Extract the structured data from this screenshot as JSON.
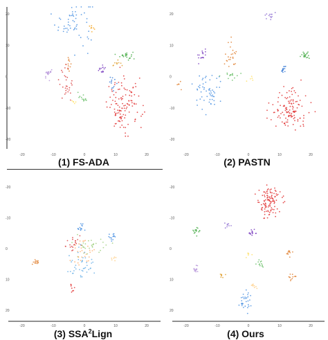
{
  "figure": {
    "panels": [
      {
        "caption_main": "(1) FS-ADA",
        "caption_sup": "",
        "caption_tail": "",
        "chart_data": {
          "type": "scatter",
          "xticks": [
            "-20",
            "-10",
            "0",
            "10",
            "20"
          ],
          "yticks": [
            "20",
            "10",
            "0",
            "-10",
            "-20"
          ],
          "xlim": [
            -24,
            24
          ],
          "ylim": [
            -25,
            25
          ],
          "clusters": [
            {
              "color": "#4a90e2",
              "cx": -3.5,
              "cy": 20,
              "sx": 3.2,
              "sy": 4.2,
              "n": 55
            },
            {
              "color": "#f5a623",
              "cx": 2.5,
              "cy": 17.5,
              "sx": 0.6,
              "sy": 0.6,
              "n": 8
            },
            {
              "color": "#4cae4c",
              "cx": 14.5,
              "cy": 8,
              "sx": 1.1,
              "sy": 0.8,
              "n": 22
            },
            {
              "color": "#e0a030",
              "cx": 11,
              "cy": 5,
              "sx": 0.8,
              "sy": 0.8,
              "n": 10
            },
            {
              "color": "#e08030",
              "cx": -5.5,
              "cy": 5,
              "sx": 0.6,
              "sy": 1.4,
              "n": 12
            },
            {
              "color": "#7b3fbf",
              "cx": 6,
              "cy": 3,
              "sx": 0.7,
              "sy": 0.7,
              "n": 14
            },
            {
              "color": "#b593d9",
              "cx": -12.5,
              "cy": 1.5,
              "sx": 0.8,
              "sy": 0.8,
              "n": 18
            },
            {
              "color": "#d94040",
              "cx": -6.5,
              "cy": -2,
              "sx": 1.2,
              "sy": 3.0,
              "n": 28
            },
            {
              "color": "#3a7bd5",
              "cx": 10,
              "cy": -1.5,
              "sx": 0.6,
              "sy": 1.2,
              "n": 12
            },
            {
              "color": "#e03030",
              "cx": 14,
              "cy": -10,
              "sx": 3.0,
              "sy": 4.6,
              "n": 120
            },
            {
              "color": "#6abf69",
              "cx": -0.5,
              "cy": -7,
              "sx": 0.9,
              "sy": 0.7,
              "n": 12
            },
            {
              "color": "#ffe066",
              "cx": -4,
              "cy": -8,
              "sx": 0.5,
              "sy": 0.5,
              "n": 5
            }
          ]
        }
      },
      {
        "caption_main": "(2) PASTN",
        "caption_sup": "",
        "caption_tail": "",
        "chart_data": {
          "type": "scatter",
          "xticks": [
            "-20",
            "-10",
            "0",
            "10",
            "20"
          ],
          "yticks": [
            "20",
            "10",
            "0",
            "-10",
            "-20"
          ],
          "xlim": [
            -24,
            24
          ],
          "ylim": [
            -25,
            25
          ],
          "clusters": [
            {
              "color": "#8e6fd1",
              "cx": 7,
              "cy": 22,
              "sx": 0.9,
              "sy": 0.9,
              "n": 12
            },
            {
              "color": "#4cae4c",
              "cx": 20,
              "cy": 8,
              "sx": 1.0,
              "sy": 0.7,
              "n": 20
            },
            {
              "color": "#7b3fbf",
              "cx": -16,
              "cy": 8,
              "sx": 0.7,
              "sy": 1.0,
              "n": 16
            },
            {
              "color": "#e08030",
              "cx": -6,
              "cy": 8,
              "sx": 0.9,
              "sy": 3.0,
              "n": 24
            },
            {
              "color": "#3a7bd5",
              "cx": 12,
              "cy": 3,
              "sx": 0.7,
              "sy": 0.7,
              "n": 14
            },
            {
              "color": "#6abf69",
              "cx": -6,
              "cy": 1,
              "sx": 1.2,
              "sy": 0.7,
              "n": 14
            },
            {
              "color": "#ffe066",
              "cx": 1,
              "cy": 0,
              "sx": 0.5,
              "sy": 0.5,
              "n": 5
            },
            {
              "color": "#4a90e2",
              "cx": -14,
              "cy": -5,
              "sx": 2.5,
              "sy": 3.8,
              "n": 55
            },
            {
              "color": "#e08030",
              "cx": -24,
              "cy": -3,
              "sx": 0.4,
              "sy": 0.7,
              "n": 6
            },
            {
              "color": "#e03030",
              "cx": 14,
              "cy": -11,
              "sx": 3.4,
              "sy": 3.8,
              "n": 120
            }
          ]
        }
      },
      {
        "caption_main": "(3) SSA",
        "caption_sup": "2",
        "caption_tail": "Lign",
        "chart_data": {
          "type": "scatter",
          "xticks": [
            "-20",
            "-10",
            "0",
            "10",
            "20"
          ],
          "yticks": [
            "-20",
            "-10",
            "0",
            "10",
            "20"
          ],
          "xlim": [
            -24,
            24
          ],
          "ylim": [
            -25,
            25
          ],
          "clusters": [
            {
              "color": "#4a90e2",
              "cx": -1,
              "cy": 8,
              "sx": 1.0,
              "sy": 1.0,
              "n": 14
            },
            {
              "color": "#4a90e2",
              "cx": 10,
              "cy": 5,
              "sx": 1.0,
              "sy": 1.0,
              "n": 14
            },
            {
              "color": "#d94040",
              "cx": -4,
              "cy": 2,
              "sx": 1.3,
              "sy": 1.2,
              "n": 20
            },
            {
              "color": "#a0d080",
              "cx": 2,
              "cy": 2,
              "sx": 3.5,
              "sy": 2.0,
              "n": 30
            },
            {
              "color": "#ffb070",
              "cx": -0.5,
              "cy": -2,
              "sx": 2.4,
              "sy": 3.0,
              "n": 30
            },
            {
              "color": "#6ab0e8",
              "cx": -1,
              "cy": -6,
              "sx": 2.0,
              "sy": 3.0,
              "n": 40
            },
            {
              "color": "#e08030",
              "cx": -17,
              "cy": -4,
              "sx": 1.0,
              "sy": 0.5,
              "n": 14
            },
            {
              "color": "#ffcc80",
              "cx": 10,
              "cy": -3,
              "sx": 0.6,
              "sy": 0.5,
              "n": 6
            },
            {
              "color": "#e03030",
              "cx": -4,
              "cy": -14,
              "sx": 0.5,
              "sy": 1.0,
              "n": 8
            }
          ]
        }
      },
      {
        "caption_main": "(4) Ours",
        "caption_sup": "",
        "caption_tail": "",
        "chart_data": {
          "type": "scatter",
          "xticks": [
            "-20",
            "-10",
            "0",
            "10",
            "20"
          ],
          "yticks": [
            "-20",
            "-10",
            "0",
            "10",
            "20"
          ],
          "xlim": [
            -24,
            24
          ],
          "ylim": [
            -25,
            25
          ],
          "clusters": [
            {
              "color": "#e03030",
              "cx": 7,
              "cy": 17,
              "sx": 2.0,
              "sy": 3.0,
              "n": 110
            },
            {
              "color": "#4cae4c",
              "cx": -18,
              "cy": 7,
              "sx": 0.7,
              "sy": 0.6,
              "n": 16
            },
            {
              "color": "#8e6fd1",
              "cx": -7,
              "cy": 9,
              "sx": 0.6,
              "sy": 0.5,
              "n": 8
            },
            {
              "color": "#7b3fbf",
              "cx": 1.5,
              "cy": 6,
              "sx": 0.6,
              "sy": 0.6,
              "n": 14
            },
            {
              "color": "#e08030",
              "cx": 14,
              "cy": -1,
              "sx": 0.5,
              "sy": 0.7,
              "n": 10
            },
            {
              "color": "#ffe066",
              "cx": 0,
              "cy": -2,
              "sx": 0.5,
              "sy": 0.5,
              "n": 6
            },
            {
              "color": "#6abf69",
              "cx": 4,
              "cy": -5,
              "sx": 0.7,
              "sy": 0.6,
              "n": 12
            },
            {
              "color": "#b593d9",
              "cx": -18,
              "cy": -7,
              "sx": 0.6,
              "sy": 0.6,
              "n": 12
            },
            {
              "color": "#e0a030",
              "cx": -9,
              "cy": -9,
              "sx": 0.5,
              "sy": 0.5,
              "n": 8
            },
            {
              "color": "#e08030",
              "cx": 15,
              "cy": -10,
              "sx": 0.6,
              "sy": 0.8,
              "n": 12
            },
            {
              "color": "#ffcc80",
              "cx": 1.5,
              "cy": -13,
              "sx": 0.6,
              "sy": 0.6,
              "n": 8
            },
            {
              "color": "#4a90e2",
              "cx": -1,
              "cy": -18,
              "sx": 1.2,
              "sy": 2.0,
              "n": 30
            }
          ]
        }
      }
    ]
  }
}
